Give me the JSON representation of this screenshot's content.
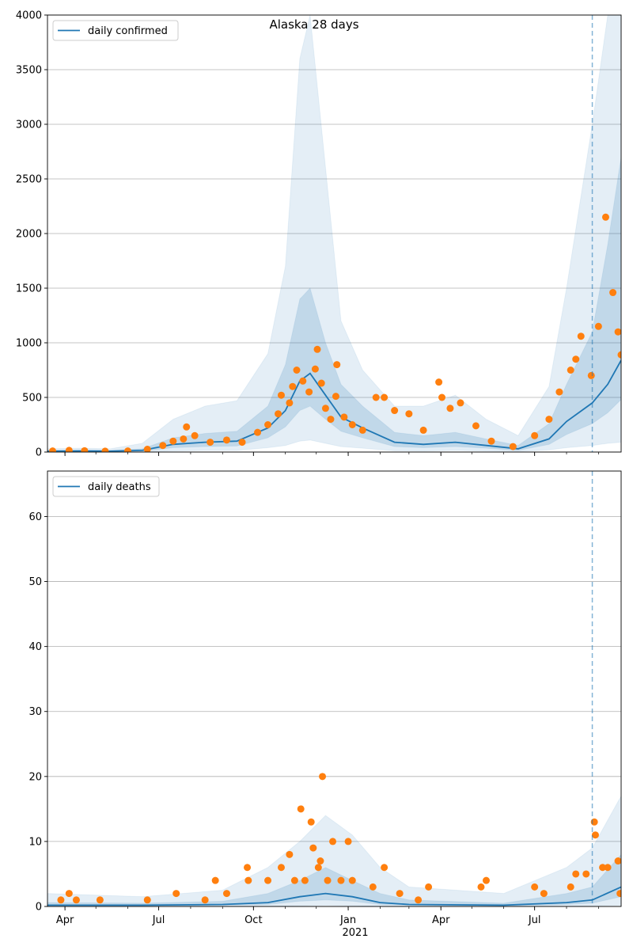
{
  "figure": {
    "title": "Alaska 28 days",
    "year_label": "2021",
    "colors": {
      "line": "#1f77b4",
      "points": "#ff7f0e",
      "band": "#1f77b4",
      "grid": "#b0b0b0",
      "forecast_line": "#1f77b4"
    }
  },
  "chart_data": [
    {
      "type": "line",
      "name": "confirmed",
      "legend": "daily confirmed",
      "legend_position": "upper-left",
      "ylim": [
        0,
        4000
      ],
      "yticks": [
        0,
        500,
        1000,
        1500,
        2000,
        2500,
        3000,
        3500,
        4000
      ],
      "xlim": [
        "2020-03-15",
        "2021-09-23"
      ],
      "xticks": [
        {
          "date": "2020-04-01",
          "label": "Apr"
        },
        {
          "date": "2020-07-01",
          "label": "Jul"
        },
        {
          "date": "2020-10-01",
          "label": "Oct"
        },
        {
          "date": "2021-01-01",
          "label": "Jan"
        },
        {
          "date": "2021-04-01",
          "label": "Apr"
        },
        {
          "date": "2021-07-01",
          "label": "Jul"
        }
      ],
      "forecast_start": "2021-08-26",
      "grid": true,
      "model": [
        {
          "date": "2020-03-15",
          "mean": 8,
          "q25": 4,
          "q75": 15,
          "q05": 1,
          "q95": 30
        },
        {
          "date": "2020-04-15",
          "mean": 10,
          "q25": 5,
          "q75": 18,
          "q05": 2,
          "q95": 35
        },
        {
          "date": "2020-05-15",
          "mean": 8,
          "q25": 4,
          "q75": 15,
          "q05": 1,
          "q95": 30
        },
        {
          "date": "2020-06-15",
          "mean": 15,
          "q25": 8,
          "q75": 30,
          "q05": 2,
          "q95": 80
        },
        {
          "date": "2020-07-15",
          "mean": 70,
          "q25": 40,
          "q75": 130,
          "q05": 10,
          "q95": 300
        },
        {
          "date": "2020-08-15",
          "mean": 90,
          "q25": 50,
          "q75": 170,
          "q05": 15,
          "q95": 420
        },
        {
          "date": "2020-09-15",
          "mean": 100,
          "q25": 55,
          "q75": 190,
          "q05": 15,
          "q95": 470
        },
        {
          "date": "2020-10-15",
          "mean": 220,
          "q25": 130,
          "q75": 420,
          "q05": 40,
          "q95": 900
        },
        {
          "date": "2020-11-01",
          "mean": 380,
          "q25": 230,
          "q75": 800,
          "q05": 60,
          "q95": 1700
        },
        {
          "date": "2020-11-15",
          "mean": 650,
          "q25": 380,
          "q75": 1400,
          "q05": 100,
          "q95": 3600
        },
        {
          "date": "2020-11-25",
          "mean": 720,
          "q25": 420,
          "q75": 1500,
          "q05": 110,
          "q95": 4000
        },
        {
          "date": "2020-12-10",
          "mean": 520,
          "q25": 300,
          "q75": 1000,
          "q05": 80,
          "q95": 2600
        },
        {
          "date": "2020-12-25",
          "mean": 320,
          "q25": 190,
          "q75": 620,
          "q05": 50,
          "q95": 1200
        },
        {
          "date": "2021-01-15",
          "mean": 220,
          "q25": 130,
          "q75": 420,
          "q05": 35,
          "q95": 750
        },
        {
          "date": "2021-02-15",
          "mean": 90,
          "q25": 50,
          "q75": 180,
          "q05": 12,
          "q95": 420
        },
        {
          "date": "2021-03-15",
          "mean": 70,
          "q25": 40,
          "q75": 150,
          "q05": 10,
          "q95": 420
        },
        {
          "date": "2021-04-15",
          "mean": 90,
          "q25": 50,
          "q75": 180,
          "q05": 15,
          "q95": 520
        },
        {
          "date": "2021-05-15",
          "mean": 60,
          "q25": 35,
          "q75": 120,
          "q05": 10,
          "q95": 300
        },
        {
          "date": "2021-06-15",
          "mean": 30,
          "q25": 15,
          "q75": 60,
          "q05": 5,
          "q95": 150
        },
        {
          "date": "2021-07-15",
          "mean": 120,
          "q25": 70,
          "q75": 260,
          "q05": 20,
          "q95": 600
        },
        {
          "date": "2021-08-01",
          "mean": 280,
          "q25": 160,
          "q75": 620,
          "q05": 40,
          "q95": 1500
        },
        {
          "date": "2021-08-26",
          "mean": 450,
          "q25": 260,
          "q75": 1100,
          "q05": 60,
          "q95": 3000
        },
        {
          "date": "2021-09-10",
          "mean": 620,
          "q25": 360,
          "q75": 1900,
          "q05": 80,
          "q95": 4000
        },
        {
          "date": "2021-09-23",
          "mean": 840,
          "q25": 480,
          "q75": 2700,
          "q05": 90,
          "q95": 4000
        }
      ],
      "points": [
        {
          "date": "2020-03-20",
          "value": 10
        },
        {
          "date": "2020-04-05",
          "value": 15
        },
        {
          "date": "2020-04-20",
          "value": 12
        },
        {
          "date": "2020-05-10",
          "value": 8
        },
        {
          "date": "2020-06-01",
          "value": 10
        },
        {
          "date": "2020-06-20",
          "value": 25
        },
        {
          "date": "2020-07-05",
          "value": 60
        },
        {
          "date": "2020-07-15",
          "value": 100
        },
        {
          "date": "2020-07-25",
          "value": 120
        },
        {
          "date": "2020-07-28",
          "value": 230
        },
        {
          "date": "2020-08-05",
          "value": 150
        },
        {
          "date": "2020-08-20",
          "value": 90
        },
        {
          "date": "2020-09-05",
          "value": 110
        },
        {
          "date": "2020-09-20",
          "value": 90
        },
        {
          "date": "2020-10-05",
          "value": 180
        },
        {
          "date": "2020-10-15",
          "value": 250
        },
        {
          "date": "2020-10-25",
          "value": 350
        },
        {
          "date": "2020-10-28",
          "value": 520
        },
        {
          "date": "2020-11-05",
          "value": 450
        },
        {
          "date": "2020-11-08",
          "value": 600
        },
        {
          "date": "2020-11-12",
          "value": 750
        },
        {
          "date": "2020-11-18",
          "value": 650
        },
        {
          "date": "2020-11-24",
          "value": 550
        },
        {
          "date": "2020-11-30",
          "value": 760
        },
        {
          "date": "2020-12-02",
          "value": 940
        },
        {
          "date": "2020-12-06",
          "value": 630
        },
        {
          "date": "2020-12-10",
          "value": 400
        },
        {
          "date": "2020-12-15",
          "value": 300
        },
        {
          "date": "2020-12-20",
          "value": 510
        },
        {
          "date": "2020-12-21",
          "value": 800
        },
        {
          "date": "2020-12-28",
          "value": 320
        },
        {
          "date": "2021-01-05",
          "value": 250
        },
        {
          "date": "2021-01-15",
          "value": 200
        },
        {
          "date": "2021-01-28",
          "value": 500
        },
        {
          "date": "2021-02-05",
          "value": 500
        },
        {
          "date": "2021-02-15",
          "value": 380
        },
        {
          "date": "2021-03-01",
          "value": 350
        },
        {
          "date": "2021-03-15",
          "value": 200
        },
        {
          "date": "2021-03-30",
          "value": 640
        },
        {
          "date": "2021-04-02",
          "value": 500
        },
        {
          "date": "2021-04-10",
          "value": 400
        },
        {
          "date": "2021-04-20",
          "value": 450
        },
        {
          "date": "2021-05-05",
          "value": 240
        },
        {
          "date": "2021-05-20",
          "value": 100
        },
        {
          "date": "2021-06-10",
          "value": 50
        },
        {
          "date": "2021-07-01",
          "value": 150
        },
        {
          "date": "2021-07-15",
          "value": 300
        },
        {
          "date": "2021-07-25",
          "value": 550
        },
        {
          "date": "2021-08-05",
          "value": 750
        },
        {
          "date": "2021-08-10",
          "value": 850
        },
        {
          "date": "2021-08-15",
          "value": 1060
        },
        {
          "date": "2021-08-25",
          "value": 700
        },
        {
          "date": "2021-09-01",
          "value": 1150
        },
        {
          "date": "2021-09-08",
          "value": 2150
        },
        {
          "date": "2021-09-15",
          "value": 1460
        },
        {
          "date": "2021-09-20",
          "value": 1100
        },
        {
          "date": "2021-09-23",
          "value": 890
        }
      ]
    },
    {
      "type": "line",
      "name": "deaths",
      "legend": "daily deaths",
      "legend_position": "upper-left",
      "ylim": [
        0,
        67
      ],
      "yticks": [
        0,
        10,
        20,
        30,
        40,
        50,
        60
      ],
      "xlim": [
        "2020-03-15",
        "2021-09-23"
      ],
      "xticks": [
        {
          "date": "2020-04-01",
          "label": "Apr"
        },
        {
          "date": "2020-07-01",
          "label": "Jul"
        },
        {
          "date": "2020-10-01",
          "label": "Oct"
        },
        {
          "date": "2021-01-01",
          "label": "Jan"
        },
        {
          "date": "2021-04-01",
          "label": "Apr"
        },
        {
          "date": "2021-07-01",
          "label": "Jul"
        }
      ],
      "forecast_start": "2021-08-26",
      "grid": true,
      "model": [
        {
          "date": "2020-03-15",
          "mean": 0.2,
          "q25": 0.1,
          "q75": 0.6,
          "q05": 0,
          "q95": 2
        },
        {
          "date": "2020-06-15",
          "mean": 0.2,
          "q25": 0.1,
          "q75": 0.5,
          "q05": 0,
          "q95": 1.5
        },
        {
          "date": "2020-09-01",
          "mean": 0.3,
          "q25": 0.2,
          "q75": 0.8,
          "q05": 0,
          "q95": 2.5
        },
        {
          "date": "2020-10-15",
          "mean": 0.6,
          "q25": 0.3,
          "q75": 2,
          "q05": 0,
          "q95": 6
        },
        {
          "date": "2020-11-15",
          "mean": 1.5,
          "q25": 0.8,
          "q75": 4,
          "q05": 0.1,
          "q95": 10
        },
        {
          "date": "2020-12-10",
          "mean": 2,
          "q25": 1,
          "q75": 6,
          "q05": 0.2,
          "q95": 14
        },
        {
          "date": "2021-01-05",
          "mean": 1.5,
          "q25": 0.8,
          "q75": 4,
          "q05": 0.1,
          "q95": 11
        },
        {
          "date": "2021-02-01",
          "mean": 0.6,
          "q25": 0.3,
          "q75": 2,
          "q05": 0,
          "q95": 6
        },
        {
          "date": "2021-03-01",
          "mean": 0.3,
          "q25": 0.2,
          "q75": 1,
          "q05": 0,
          "q95": 3
        },
        {
          "date": "2021-06-01",
          "mean": 0.2,
          "q25": 0.1,
          "q75": 0.5,
          "q05": 0,
          "q95": 2
        },
        {
          "date": "2021-08-01",
          "mean": 0.6,
          "q25": 0.3,
          "q75": 2,
          "q05": 0,
          "q95": 6
        },
        {
          "date": "2021-08-26",
          "mean": 1,
          "q25": 0.5,
          "q75": 3,
          "q05": 0.1,
          "q95": 9
        },
        {
          "date": "2021-09-23",
          "mean": 3,
          "q25": 1.5,
          "q75": 8,
          "q05": 0.2,
          "q95": 17
        }
      ],
      "points": [
        {
          "date": "2020-03-28",
          "value": 1
        },
        {
          "date": "2020-04-05",
          "value": 2
        },
        {
          "date": "2020-04-12",
          "value": 1
        },
        {
          "date": "2020-05-05",
          "value": 1
        },
        {
          "date": "2020-06-20",
          "value": 1
        },
        {
          "date": "2020-07-18",
          "value": 2
        },
        {
          "date": "2020-08-15",
          "value": 1
        },
        {
          "date": "2020-08-25",
          "value": 4
        },
        {
          "date": "2020-09-05",
          "value": 2
        },
        {
          "date": "2020-09-25",
          "value": 6
        },
        {
          "date": "2020-09-26",
          "value": 4
        },
        {
          "date": "2020-10-15",
          "value": 4
        },
        {
          "date": "2020-10-28",
          "value": 6
        },
        {
          "date": "2020-11-05",
          "value": 8
        },
        {
          "date": "2020-11-10",
          "value": 4
        },
        {
          "date": "2020-11-16",
          "value": 15
        },
        {
          "date": "2020-11-20",
          "value": 4
        },
        {
          "date": "2020-11-26",
          "value": 13
        },
        {
          "date": "2020-11-28",
          "value": 9
        },
        {
          "date": "2020-12-03",
          "value": 6
        },
        {
          "date": "2020-12-05",
          "value": 7
        },
        {
          "date": "2020-12-07",
          "value": 20
        },
        {
          "date": "2020-12-12",
          "value": 4
        },
        {
          "date": "2020-12-17",
          "value": 10
        },
        {
          "date": "2020-12-25",
          "value": 4
        },
        {
          "date": "2021-01-01",
          "value": 10
        },
        {
          "date": "2021-01-05",
          "value": 4
        },
        {
          "date": "2021-01-25",
          "value": 3
        },
        {
          "date": "2021-02-05",
          "value": 6
        },
        {
          "date": "2021-02-20",
          "value": 2
        },
        {
          "date": "2021-03-10",
          "value": 1
        },
        {
          "date": "2021-03-20",
          "value": 3
        },
        {
          "date": "2021-05-10",
          "value": 3
        },
        {
          "date": "2021-05-15",
          "value": 4
        },
        {
          "date": "2021-07-01",
          "value": 3
        },
        {
          "date": "2021-07-10",
          "value": 2
        },
        {
          "date": "2021-08-05",
          "value": 3
        },
        {
          "date": "2021-08-10",
          "value": 5
        },
        {
          "date": "2021-08-20",
          "value": 5
        },
        {
          "date": "2021-08-28",
          "value": 13
        },
        {
          "date": "2021-08-29",
          "value": 11
        },
        {
          "date": "2021-09-05",
          "value": 6
        },
        {
          "date": "2021-09-10",
          "value": 6
        },
        {
          "date": "2021-09-20",
          "value": 7
        },
        {
          "date": "2021-09-22",
          "value": 2
        }
      ]
    }
  ]
}
